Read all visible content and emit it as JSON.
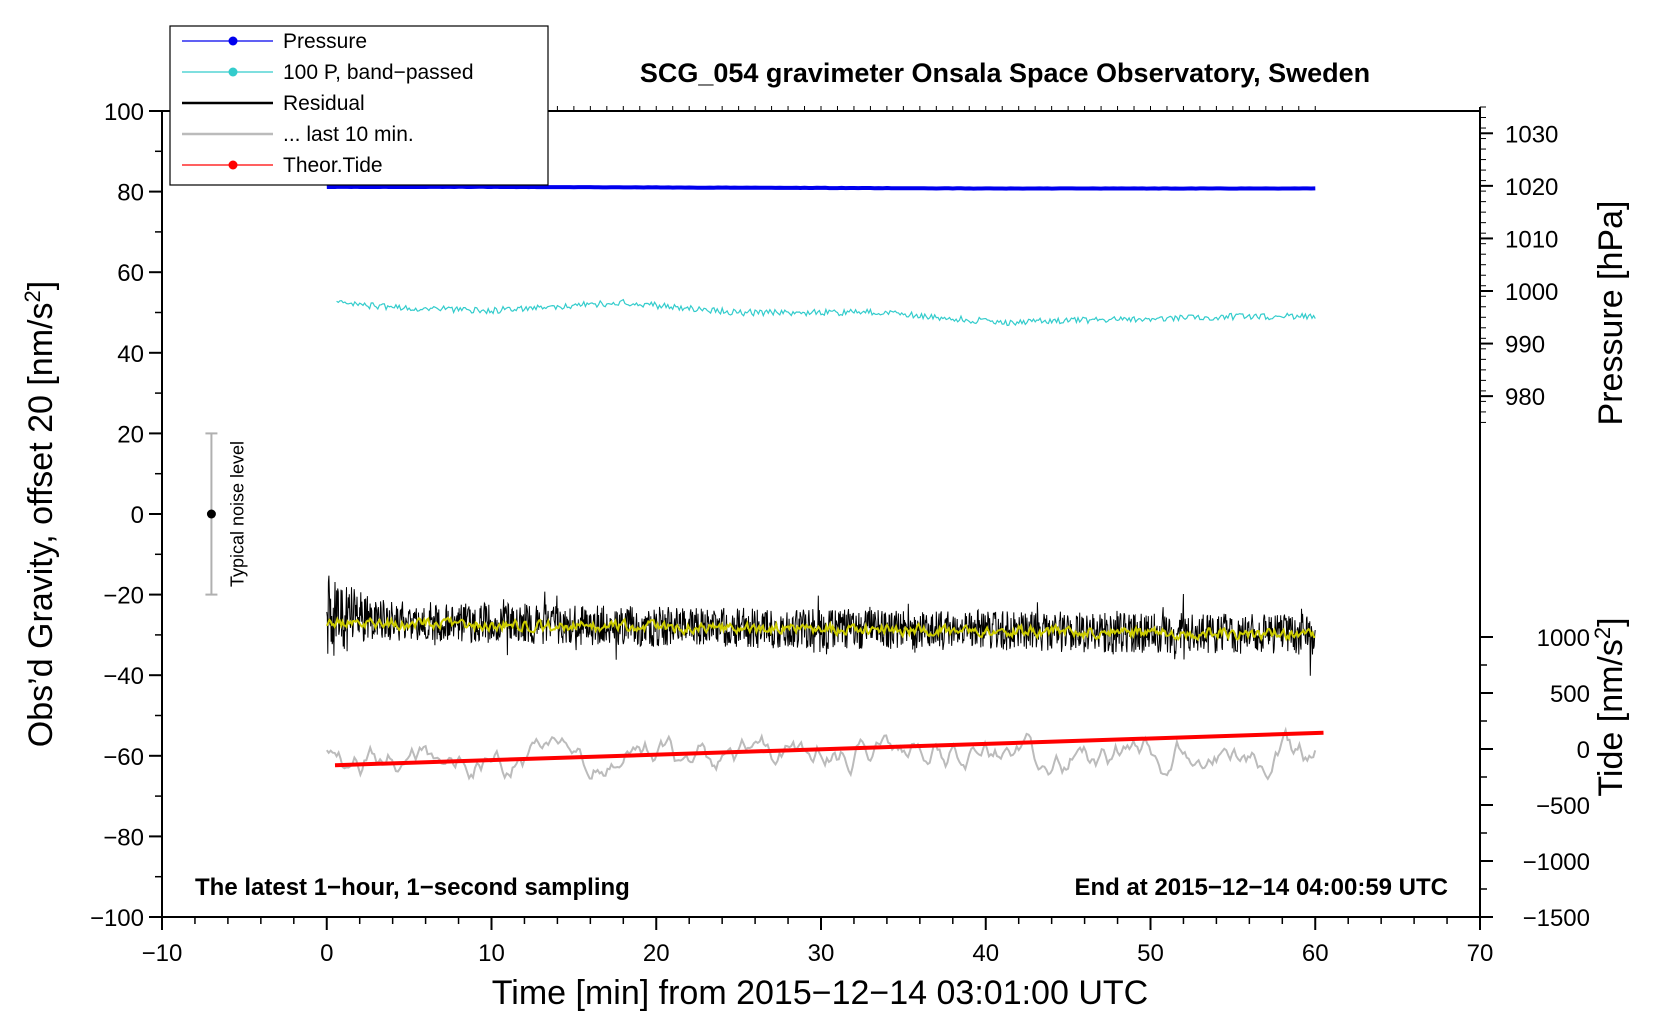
{
  "chart_data": {
    "type": "line",
    "title": "SCG_054 gravimeter Onsala Space Observatory, Sweden",
    "xlabel": "Time [min] from 2015−12−14 03:01:00 UTC",
    "ylabel_left": "Obs’d Gravity, offset 20 [nm/s2]",
    "ylabel_left_main": "Obs’d Gravity, offset 20 [nm/s",
    "ylabel_left_sup": "2",
    "ylabel_left_end": "]",
    "ylabel_right_pressure": "Pressure [hPa]",
    "ylabel_right_tide_main": "Tide [nm/s",
    "ylabel_right_tide_sup": "2",
    "ylabel_right_tide_end": "]",
    "xlim": [
      -10,
      70
    ],
    "ylim": [
      -100,
      100
    ],
    "pressure_axis_range": [
      965,
      1035
    ],
    "tide_axis_range": [
      -1500,
      1500
    ],
    "x_ticks": [
      -10,
      0,
      10,
      20,
      30,
      40,
      50,
      60,
      70
    ],
    "x_tick_labels": [
      "−10",
      "0",
      "10",
      "20",
      "30",
      "40",
      "50",
      "60",
      "70"
    ],
    "y_ticks": [
      -100,
      -80,
      -60,
      -40,
      -20,
      0,
      20,
      40,
      60,
      80,
      100
    ],
    "y_tick_labels": [
      "−100",
      "−80",
      "−60",
      "−40",
      "−20",
      "0",
      "20",
      "40",
      "60",
      "80",
      "100"
    ],
    "pressure_ticks": [
      980,
      990,
      1000,
      1010,
      1020,
      1030
    ],
    "tide_ticks": [
      -1500,
      -1000,
      -500,
      0,
      500,
      1000
    ],
    "tide_tick_labels": [
      "−1500",
      "−1000",
      "−500",
      "0",
      "500",
      "1000"
    ],
    "annotation_left": "The latest 1−hour, 1−second sampling",
    "annotation_right": "End at 2015−12−14 04:00:59 UTC",
    "noise_bar": {
      "x": -7,
      "center": 0,
      "low": -20,
      "high": 20,
      "label": "Typical noise level"
    },
    "legend": [
      {
        "label": "Pressure",
        "color": "#0000ee",
        "marker": true
      },
      {
        "label": "100 P, band−passed",
        "color": "#33cccc",
        "marker": true
      },
      {
        "label": "Residual",
        "color": "#000000",
        "marker": false
      },
      {
        "label": "... last 10 min.",
        "color": "#bbbbbb",
        "marker": false
      },
      {
        "label": "Theor.Tide",
        "color": "#ff0000",
        "marker": true
      }
    ],
    "series": [
      {
        "name": "Pressure",
        "color": "#0000ee",
        "axis": "pressure",
        "x": [
          0,
          10,
          20,
          30,
          40,
          50,
          60
        ],
        "values": [
          1019.8,
          1019.8,
          1019.7,
          1019.6,
          1019.5,
          1019.5,
          1019.5
        ]
      },
      {
        "name": "100 P, band−passed",
        "color": "#33cccc",
        "axis": "gravity",
        "x": [
          0,
          3,
          6,
          10,
          14,
          18,
          22,
          25,
          30,
          34,
          38,
          41,
          45,
          50,
          55,
          60
        ],
        "values": [
          53,
          51.5,
          51,
          50.5,
          51.5,
          52.5,
          51,
          50,
          50,
          50,
          48.5,
          47.5,
          48,
          48.5,
          49,
          49
        ]
      },
      {
        "name": "Residual",
        "color": "#000000",
        "axis": "gravity",
        "x": [
          0,
          10,
          20,
          30,
          40,
          50,
          60
        ],
        "values": [
          -26,
          -27,
          -28,
          -28.5,
          -29,
          -29.5,
          -30
        ]
      },
      {
        "name": "Residual smoothed",
        "color": "#cccc00",
        "axis": "gravity",
        "x": [
          0,
          10,
          20,
          30,
          40,
          50,
          60
        ],
        "values": [
          -27,
          -27.5,
          -28,
          -28.5,
          -29,
          -29.5,
          -30
        ]
      },
      {
        "name": "... last 10 min.",
        "color": "#bbbbbb",
        "axis": "gravity",
        "x": [
          0,
          60
        ],
        "values": [
          -60,
          -60
        ]
      },
      {
        "name": "Theor.Tide",
        "color": "#ff0000",
        "axis": "tide",
        "x": [
          0.5,
          60.5
        ],
        "values": [
          -145,
          145
        ]
      }
    ]
  }
}
